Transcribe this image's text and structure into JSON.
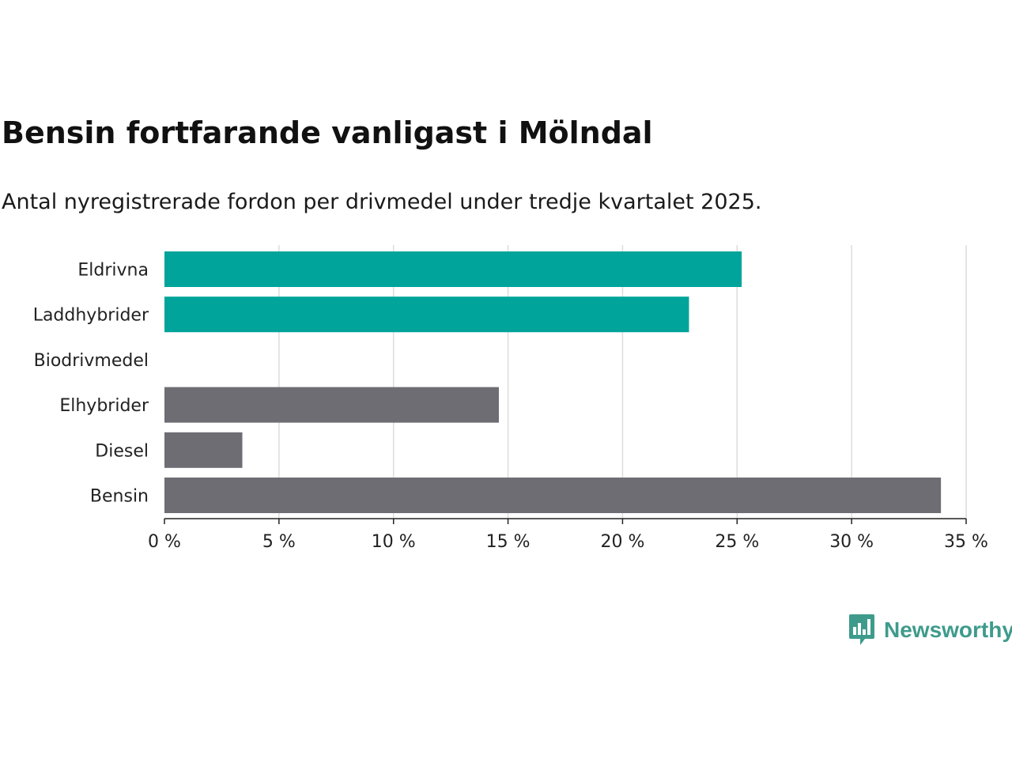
{
  "chart_data": {
    "type": "bar",
    "orientation": "horizontal",
    "title": "Bensin fortfarande vanligast i Mölndal",
    "subtitle": "Antal nyregistrerade fordon per drivmedel under tredje kvartalet 2025.",
    "categories": [
      "Eldrivna",
      "Laddhybrider",
      "Biodrivmedel",
      "Elhybrider",
      "Diesel",
      "Bensin"
    ],
    "values": [
      25.2,
      22.9,
      0,
      14.6,
      3.4,
      33.9
    ],
    "bar_colors": [
      "#00a49a",
      "#00a49a",
      "#00a49a",
      "#6e6d73",
      "#6e6d73",
      "#6e6d73"
    ],
    "xlim": [
      0,
      35
    ],
    "xticks": [
      0,
      5,
      10,
      15,
      20,
      25,
      30,
      35
    ],
    "xtick_labels": [
      "0 %",
      "5 %",
      "10 %",
      "15 %",
      "20 %",
      "25 %",
      "30 %",
      "35 %"
    ],
    "xlabel": "",
    "ylabel": "",
    "grid": true
  },
  "brand": {
    "name": "Newsworthy",
    "color": "#3e9b8c",
    "icon": "bar-chart-speech-bubble-icon"
  }
}
